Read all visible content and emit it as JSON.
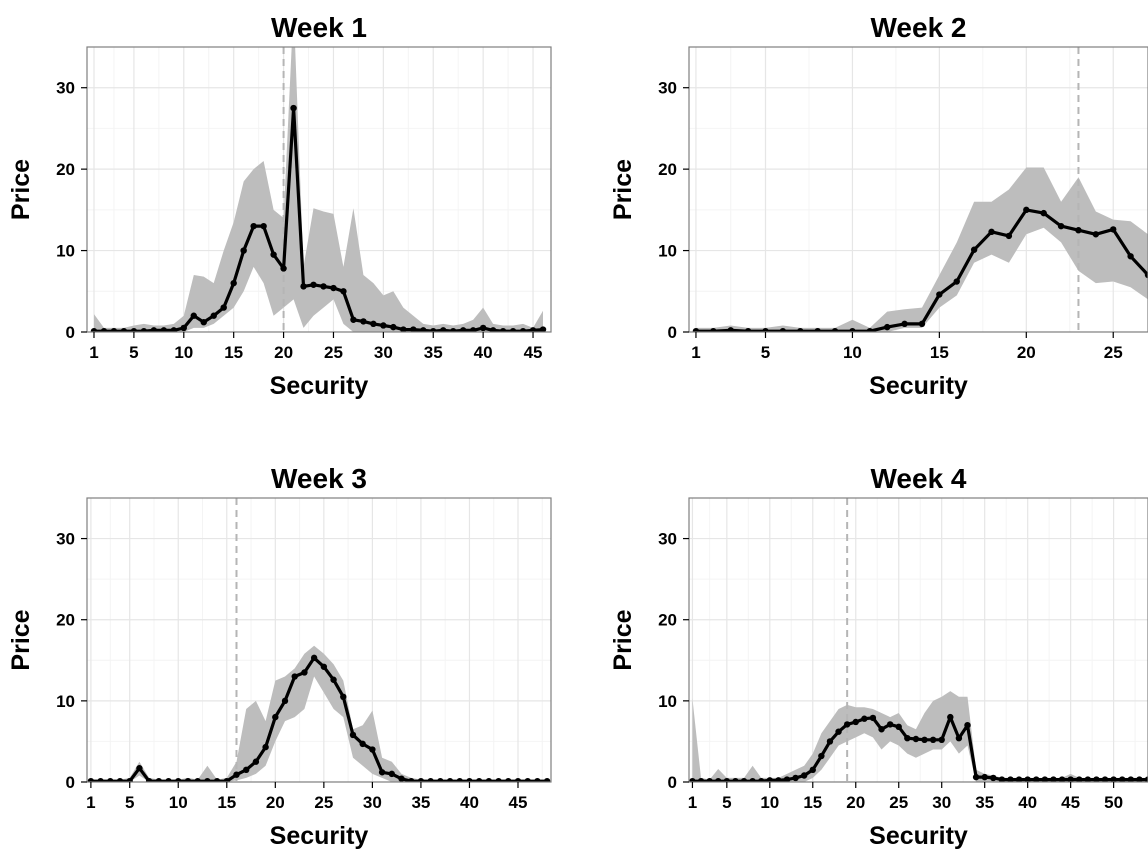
{
  "chart_data": [
    {
      "type": "line",
      "title": "Week  1",
      "xlabel": "Security",
      "ylabel": "Price",
      "xlim": [
        0.3,
        46.8
      ],
      "ylim": [
        0,
        35
      ],
      "xticks": [
        1,
        5,
        10,
        15,
        20,
        25,
        30,
        35,
        40,
        45
      ],
      "yticks": [
        0,
        10,
        20,
        30
      ],
      "grid": true,
      "vline": 20,
      "series": [
        {
          "x": [
            1,
            2,
            3,
            4,
            5,
            6,
            7,
            8,
            9,
            10,
            11,
            12,
            13,
            14,
            15,
            16,
            17,
            18,
            19,
            20,
            21,
            22,
            23,
            24,
            25,
            26,
            27,
            28,
            29,
            30,
            31,
            32,
            33,
            34,
            35,
            36,
            37,
            38,
            39,
            40,
            41,
            42,
            43,
            44,
            45,
            46
          ],
          "values": [
            0.1,
            0.1,
            0.1,
            0.1,
            0.1,
            0.1,
            0.2,
            0.2,
            0.2,
            0.5,
            2.0,
            1.2,
            2.0,
            3.0,
            6.0,
            10.0,
            13.0,
            13.0,
            9.5,
            7.8,
            27.5,
            5.6,
            5.8,
            5.6,
            5.4,
            5.0,
            1.5,
            1.3,
            1.0,
            0.8,
            0.6,
            0.3,
            0.3,
            0.2,
            0.1,
            0.2,
            0.1,
            0.2,
            0.2,
            0.5,
            0.2,
            0.1,
            0.1,
            0.1,
            0.2,
            0.3
          ],
          "lower": [
            0,
            0,
            0,
            0,
            0,
            0,
            0,
            0,
            0,
            0,
            0.5,
            0.5,
            1.0,
            2.0,
            3.0,
            5.0,
            8.0,
            6.0,
            2.0,
            3.0,
            4.0,
            0.5,
            2.0,
            3.0,
            4.0,
            1.0,
            0,
            0,
            0,
            0,
            0,
            0,
            0,
            0,
            0,
            0,
            0,
            0,
            0,
            0,
            0,
            0,
            0,
            0,
            0,
            0
          ],
          "upper": [
            2.2,
            0.5,
            0.5,
            0.5,
            0.8,
            1.0,
            0.8,
            0.8,
            1.0,
            2.0,
            7.0,
            6.8,
            6.0,
            10.0,
            13.5,
            18.5,
            20.0,
            21.0,
            15.0,
            14.0,
            40.0,
            8.0,
            15.2,
            14.8,
            14.5,
            8.0,
            15.2,
            7.0,
            6.0,
            4.5,
            5.0,
            3.0,
            2.0,
            1.0,
            0.8,
            1.0,
            0.8,
            1.0,
            1.5,
            3.0,
            1.0,
            0.8,
            0.8,
            1.0,
            0.5,
            2.6
          ]
        }
      ]
    },
    {
      "type": "line",
      "title": "Week  2",
      "xlabel": "Security",
      "ylabel": "Price",
      "xlim": [
        0.6,
        27.0
      ],
      "ylim": [
        0,
        35
      ],
      "xticks": [
        1,
        5,
        10,
        15,
        20,
        25
      ],
      "yticks": [
        0,
        10,
        20,
        30
      ],
      "grid": true,
      "vline": 23,
      "series": [
        {
          "x": [
            1,
            2,
            3,
            4,
            5,
            6,
            7,
            8,
            9,
            10,
            11,
            12,
            13,
            14,
            15,
            16,
            17,
            18,
            19,
            20,
            21,
            22,
            23,
            24,
            25,
            26,
            27
          ],
          "values": [
            0.1,
            0.1,
            0.2,
            0.1,
            0.1,
            0.1,
            0.1,
            0.1,
            0.1,
            0.1,
            0.1,
            0.6,
            1.0,
            1.0,
            4.6,
            6.2,
            10.1,
            12.3,
            11.8,
            15.0,
            14.6,
            13.0,
            12.5,
            12.0,
            12.6,
            9.3,
            7.0
          ],
          "lower": [
            0,
            0,
            0,
            0,
            0,
            0,
            0,
            0,
            0,
            0,
            0,
            0,
            0.5,
            0.5,
            3.0,
            4.5,
            8.5,
            9.5,
            8.5,
            12.0,
            12.8,
            11.0,
            7.5,
            6.0,
            6.2,
            5.5,
            4.0
          ],
          "upper": [
            0.5,
            0.5,
            0.8,
            0.5,
            0.5,
            0.8,
            0.5,
            0.5,
            0.5,
            1.5,
            0.5,
            2.5,
            2.8,
            3.0,
            7.0,
            11.0,
            16.0,
            16.0,
            17.5,
            20.2,
            20.2,
            16.0,
            19.0,
            14.8,
            13.8,
            13.6,
            12.0
          ]
        }
      ]
    },
    {
      "type": "line",
      "title": "Week  3",
      "xlabel": "Security",
      "ylabel": "Price",
      "xlim": [
        0.6,
        48.4
      ],
      "ylim": [
        0,
        35
      ],
      "xticks": [
        1,
        5,
        10,
        15,
        20,
        25,
        30,
        35,
        40,
        45
      ],
      "yticks": [
        0,
        10,
        20,
        30
      ],
      "grid": true,
      "vline": 16,
      "series": [
        {
          "x": [
            1,
            2,
            3,
            4,
            5,
            6,
            7,
            8,
            9,
            10,
            11,
            12,
            13,
            14,
            15,
            16,
            17,
            18,
            19,
            20,
            21,
            22,
            23,
            24,
            25,
            26,
            27,
            28,
            29,
            30,
            31,
            32,
            33,
            34,
            35,
            36,
            37,
            38,
            39,
            40,
            41,
            42,
            43,
            44,
            45,
            46,
            47,
            48
          ],
          "values": [
            0.1,
            0.1,
            0.1,
            0.1,
            0.1,
            1.7,
            0.1,
            0.1,
            0.1,
            0.1,
            0.1,
            0.1,
            0.1,
            0.1,
            0.1,
            0.9,
            1.5,
            2.5,
            4.3,
            8.0,
            10.0,
            13.0,
            13.5,
            15.3,
            14.2,
            12.6,
            10.5,
            5.8,
            4.7,
            4.0,
            1.2,
            1.0,
            0.4,
            0.1,
            0.1,
            0.1,
            0.1,
            0.1,
            0.1,
            0.1,
            0.1,
            0.1,
            0.1,
            0.1,
            0.1,
            0.1,
            0.1,
            0.1
          ],
          "lower": [
            0,
            0,
            0,
            0,
            0,
            0.8,
            0,
            0,
            0,
            0,
            0,
            0,
            0,
            0,
            0,
            0.2,
            0.5,
            1.0,
            2.0,
            5.0,
            7.5,
            8.0,
            9.0,
            13.0,
            11.0,
            9.0,
            8.0,
            3.0,
            2.0,
            1.0,
            0.5,
            0,
            0,
            0,
            0,
            0,
            0,
            0,
            0,
            0,
            0,
            0,
            0,
            0,
            0,
            0,
            0,
            0
          ],
          "upper": [
            0.3,
            0.3,
            0.3,
            0.3,
            0.5,
            2.5,
            0.5,
            0.3,
            0.3,
            0.3,
            0.5,
            0.3,
            2.0,
            0.3,
            0.5,
            2.5,
            9.0,
            10.0,
            7.5,
            12.5,
            13.0,
            14.0,
            15.8,
            16.8,
            15.8,
            14.5,
            12.5,
            6.5,
            7.0,
            8.8,
            3.0,
            2.5,
            1.0,
            0.5,
            0.3,
            0.3,
            0.3,
            0.3,
            0.3,
            0.3,
            0.3,
            0.3,
            0.3,
            0.3,
            0.3,
            0.3,
            0.3,
            0.3
          ]
        }
      ]
    },
    {
      "type": "line",
      "title": "Week  4",
      "xlabel": "Security",
      "ylabel": "Price",
      "xlim": [
        0.6,
        54.0
      ],
      "ylim": [
        0,
        35
      ],
      "xticks": [
        1,
        5,
        10,
        15,
        20,
        25,
        30,
        35,
        40,
        45,
        50
      ],
      "yticks": [
        0,
        10,
        20,
        30
      ],
      "grid": true,
      "vline": 19,
      "series": [
        {
          "x": [
            1,
            2,
            3,
            4,
            5,
            6,
            7,
            8,
            9,
            10,
            11,
            12,
            13,
            14,
            15,
            16,
            17,
            18,
            19,
            20,
            21,
            22,
            23,
            24,
            25,
            26,
            27,
            28,
            29,
            30,
            31,
            32,
            33,
            34,
            35,
            36,
            37,
            38,
            39,
            40,
            41,
            42,
            43,
            44,
            45,
            46,
            47,
            48,
            49,
            50,
            51,
            52,
            53,
            54
          ],
          "values": [
            0.1,
            0.1,
            0.1,
            0.1,
            0.1,
            0.1,
            0.1,
            0.1,
            0.1,
            0.2,
            0.2,
            0.3,
            0.5,
            0.8,
            1.5,
            3.2,
            5.0,
            6.2,
            7.1,
            7.4,
            7.8,
            7.9,
            6.5,
            7.1,
            6.8,
            5.4,
            5.3,
            5.2,
            5.2,
            5.2,
            8.0,
            5.4,
            7.0,
            0.6,
            0.6,
            0.5,
            0.3,
            0.3,
            0.3,
            0.3,
            0.3,
            0.3,
            0.3,
            0.3,
            0.3,
            0.3,
            0.3,
            0.3,
            0.3,
            0.3,
            0.3,
            0.3,
            0.3,
            0.3
          ],
          "lower": [
            0,
            0,
            0,
            0,
            0,
            0,
            0,
            0,
            0,
            0,
            0,
            0,
            0,
            0,
            0.5,
            1.5,
            3.0,
            4.5,
            5.0,
            5.5,
            6.0,
            5.5,
            4.0,
            5.0,
            4.5,
            3.5,
            3.0,
            3.5,
            4.0,
            4.0,
            5.0,
            3.5,
            4.5,
            0,
            0,
            0,
            0,
            0,
            0,
            0,
            0,
            0,
            0,
            0,
            0,
            0,
            0,
            0,
            0,
            0,
            0,
            0,
            0,
            0
          ],
          "upper": [
            10.3,
            0.5,
            0.3,
            1.6,
            0.5,
            0.5,
            0.5,
            2.0,
            0.5,
            0.5,
            0.5,
            1.0,
            1.5,
            2.0,
            3.5,
            6.0,
            7.5,
            9.0,
            9.5,
            9.2,
            9.2,
            9.0,
            8.5,
            8.0,
            8.5,
            7.0,
            6.5,
            8.5,
            10.0,
            10.5,
            11.2,
            10.5,
            10.5,
            1.5,
            1.0,
            0.8,
            0.5,
            0.5,
            0.5,
            0.5,
            0.5,
            0.5,
            0.5,
            0.5,
            1.0,
            0.5,
            0.5,
            0.5,
            0.5,
            0.5,
            0.5,
            0.5,
            0.5,
            0.5
          ]
        }
      ]
    }
  ],
  "colors": {
    "band": "#bdbdbd",
    "line": "#000000",
    "grid_major": "#e6e6e6",
    "grid_minor": "#f4f4f4",
    "vline": "#b5b5b5",
    "frame": "#7f7f7f"
  }
}
